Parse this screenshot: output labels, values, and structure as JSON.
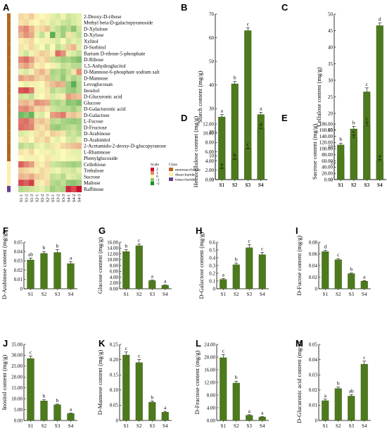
{
  "colors": {
    "bar": "#4d7a1c",
    "bar_edge": "#2f4f0e",
    "heat_low": "#1a8c2e",
    "heat_mid": "#fbfbb8",
    "heat_high": "#c8102e",
    "class_mono": "#b5651d",
    "class_di": "#ffeeaa",
    "class_tri": "#6a3d9a"
  },
  "heatmap": {
    "panel": "A",
    "columns": [
      "S1-1",
      "S1-2",
      "S1-3",
      "S2-1",
      "S2-2",
      "S2-3",
      "S3-1",
      "S3-2",
      "S3-3",
      "S4-1",
      "S4-2",
      "S4-3"
    ],
    "rows": [
      "2-Deoxy-D-ribose",
      "Methyl beta-D-galactopyranoside",
      "D-Xylulose",
      "D-Xylose",
      "Xylitol",
      "D-Sorbitol",
      "Barium D-ribose-5-phosphate",
      "D-Ribose",
      "1,5-Anhydroglucitol",
      "D-Mannose-6-phosphate sodium salt",
      "D-Mannose",
      "Levoglucosan",
      "Inositol",
      "D-Glucuronic acid",
      "Glucose",
      "D-Galacturonic acid",
      "D-Galactose",
      "L-Fucose",
      "D-Fructose",
      "D-Arabinose",
      "D-Arabinitol",
      "2-Acetamido-2-deoxy-D-glucopyranose",
      "L-Rhamnose",
      "Phenylglucoside",
      "Cellobiose",
      "Trehalose",
      "Sucrose",
      "Maltose",
      "Raffinose"
    ],
    "row_class": [
      "mono",
      "mono",
      "mono",
      "mono",
      "mono",
      "mono",
      "mono",
      "mono",
      "mono",
      "mono",
      "mono",
      "mono",
      "mono",
      "mono",
      "mono",
      "mono",
      "mono",
      "mono",
      "mono",
      "mono",
      "mono",
      "mono",
      "mono",
      "mono",
      "di",
      "di",
      "di",
      "di",
      "tri"
    ],
    "values": [
      [
        0.3,
        0.2,
        0.4,
        0.1,
        0.0,
        0.1,
        -0.2,
        -0.3,
        -0.1,
        -0.4,
        -0.3,
        -0.2
      ],
      [
        0.2,
        0.3,
        0.1,
        0.0,
        0.2,
        -0.1,
        -0.3,
        -0.2,
        -0.4,
        -0.5,
        -0.3,
        -0.2
      ],
      [
        0.8,
        1.0,
        0.6,
        0.2,
        0.3,
        0.5,
        -0.3,
        -0.5,
        -0.8,
        -0.6,
        -1.0,
        -0.4
      ],
      [
        0.6,
        0.9,
        0.7,
        -0.2,
        -0.5,
        -0.1,
        -1.4,
        -0.4,
        -0.8,
        0.2,
        -0.3,
        -0.5
      ],
      [
        0.1,
        0.2,
        0.3,
        0.0,
        -0.1,
        0.1,
        -0.2,
        -0.3,
        0.0,
        -0.4,
        -0.2,
        -0.3
      ],
      [
        0.2,
        0.1,
        0.3,
        -0.2,
        0.0,
        -0.4,
        0.0,
        -0.5,
        -0.3,
        0.4,
        0.6,
        -0.2
      ],
      [
        -0.2,
        -0.4,
        -0.1,
        0.2,
        0.4,
        0.3,
        0.1,
        1.2,
        0.9,
        -0.2,
        -0.3,
        -0.5
      ],
      [
        1.0,
        1.2,
        0.8,
        0.3,
        0.2,
        0.4,
        -0.5,
        -0.6,
        -0.8,
        -0.7,
        -0.9,
        -1.1
      ],
      [
        0.6,
        0.8,
        0.5,
        0.1,
        0.2,
        0.0,
        0.1,
        -0.2,
        -0.5,
        -0.4,
        -0.6,
        -0.6
      ],
      [
        -0.2,
        -0.3,
        -0.1,
        0.4,
        0.6,
        0.3,
        -0.7,
        -0.6,
        -0.8,
        -0.5,
        0.2,
        0.9
      ],
      [
        0.8,
        0.6,
        0.7,
        0.4,
        0.3,
        0.5,
        -0.6,
        -0.5,
        -0.9,
        -0.4,
        -0.7,
        -0.5
      ],
      [
        0.0,
        -0.2,
        0.1,
        -0.1,
        0.0,
        0.3,
        0.5,
        0.7,
        0.6,
        -0.8,
        -1.4,
        -0.6
      ],
      [
        1.4,
        1.5,
        1.1,
        0.1,
        -0.1,
        0.2,
        -0.6,
        -0.4,
        -0.5,
        -0.8,
        -0.9,
        -0.6
      ],
      [
        -0.4,
        -0.3,
        -0.5,
        -0.1,
        0.0,
        0.2,
        -0.3,
        -0.2,
        0.1,
        0.8,
        0.6,
        0.5
      ],
      [
        0.5,
        0.6,
        0.4,
        0.9,
        0.8,
        0.7,
        -0.6,
        -0.7,
        -0.5,
        -1.0,
        -0.9,
        -1.1
      ],
      [
        0.9,
        1.0,
        0.7,
        0.3,
        0.4,
        0.2,
        -0.4,
        -0.5,
        -0.6,
        -0.6,
        -0.8,
        -0.5
      ],
      [
        -1.2,
        -1.0,
        -1.3,
        -0.2,
        -0.3,
        0.0,
        0.8,
        0.9,
        1.1,
        0.4,
        0.5,
        0.3
      ],
      [
        1.1,
        1.2,
        0.9,
        0.4,
        0.5,
        0.3,
        -0.6,
        -0.5,
        -0.7,
        -0.8,
        -0.9,
        -0.8
      ],
      [
        1.2,
        1.1,
        1.0,
        0.3,
        0.2,
        0.4,
        -0.8,
        -0.9,
        -0.7,
        -0.6,
        -0.5,
        -0.7
      ],
      [
        -0.3,
        -0.2,
        -0.1,
        0.2,
        0.3,
        0.1,
        0.4,
        0.3,
        0.2,
        -0.5,
        -0.4,
        -0.6
      ],
      [
        0.1,
        0.2,
        0.0,
        0.3,
        0.2,
        0.4,
        -0.1,
        -0.2,
        0.0,
        -0.3,
        -0.4,
        -0.2
      ],
      [
        -0.6,
        -0.4,
        -0.5,
        -0.2,
        -0.1,
        -0.3,
        0.2,
        0.1,
        0.3,
        0.4,
        0.5,
        0.6
      ],
      [
        0.2,
        0.1,
        0.3,
        0.0,
        -0.1,
        0.1,
        -0.2,
        -0.1,
        0.0,
        0.1,
        -0.2,
        -0.2
      ],
      [
        0.0,
        0.1,
        -0.1,
        0.1,
        0.0,
        0.2,
        0.1,
        -0.1,
        0.0,
        -0.1,
        -0.1,
        -0.2
      ],
      [
        1.3,
        1.0,
        0.8,
        0.2,
        0.1,
        0.3,
        -0.4,
        -0.5,
        -0.6,
        -0.7,
        -0.8,
        -0.7
      ],
      [
        0.4,
        0.3,
        0.2,
        0.1,
        0.3,
        0.2,
        -0.2,
        -0.1,
        -0.3,
        -0.3,
        -0.4,
        -0.2
      ],
      [
        0.6,
        0.5,
        0.7,
        0.4,
        0.3,
        0.2,
        -0.5,
        -0.4,
        -0.6,
        -0.2,
        -0.3,
        -0.4
      ],
      [
        1.5,
        1.3,
        1.6,
        0.2,
        0.1,
        0.3,
        -0.6,
        -0.7,
        -0.5,
        -0.9,
        -1.0,
        -0.8
      ],
      [
        -0.6,
        -0.5,
        -0.4,
        -0.3,
        -0.2,
        -0.4,
        -0.8,
        -0.6,
        -0.7,
        1.8,
        1.5,
        2.0
      ]
    ],
    "legend_scale_title": "Scale",
    "legend_scale_ticks": [
      "2",
      "1",
      "0",
      "-1",
      "-2"
    ],
    "legend_class_title": "Class",
    "legend_class_items": [
      "monosaccharide",
      "disaccharide",
      "trisaccharide"
    ]
  },
  "chart_data": [
    {
      "panel": "B",
      "type": "bar",
      "categories": [
        "S1",
        "S2",
        "S3",
        "S4"
      ],
      "values": [
        26.5,
        40.5,
        63,
        27.5
      ],
      "errors": [
        1.0,
        1.0,
        1.2,
        1.0
      ],
      "letters": [
        "a",
        "b",
        "c",
        "a"
      ],
      "ylabel": "Starch content (mg/g)",
      "ylim": [
        0,
        70
      ],
      "ticks": [
        "0",
        "10",
        "20",
        "30",
        "40",
        "50",
        "60",
        "70"
      ]
    },
    {
      "panel": "C",
      "type": "bar",
      "categories": [
        "S1",
        "S2",
        "S3",
        "S4"
      ],
      "values": [
        6.8,
        15.3,
        26.5,
        46.5
      ],
      "errors": [
        0.5,
        0.8,
        1.2,
        0.8
      ],
      "letters": [
        "a",
        "b",
        "c",
        "d"
      ],
      "ylabel": "Cellulose content (mg/g)",
      "ylim": [
        0,
        50
      ],
      "ticks": [
        "0",
        "5",
        "10",
        "15",
        "20",
        "25",
        "30",
        "35",
        "40",
        "45",
        "50"
      ]
    },
    {
      "panel": "D",
      "type": "bar",
      "categories": [
        "S1",
        "S2",
        "S3",
        "S4"
      ],
      "values": [
        2.3,
        4.3,
        6.6,
        10.9
      ],
      "errors": [
        0.2,
        0.2,
        0.2,
        0.2
      ],
      "letters": [
        "a",
        "b",
        "c",
        "d"
      ],
      "ylabel": "Hemicellulose content (mg/g)",
      "ylim": [
        0,
        12
      ],
      "ticks": [
        "0.00",
        "2.00",
        "4.00",
        "6.00",
        "8.00",
        "10.00",
        "12.00"
      ]
    },
    {
      "panel": "E",
      "type": "bar",
      "categories": [
        "S1",
        "S2",
        "S3",
        "S4"
      ],
      "values": [
        112,
        135,
        173,
        60
      ],
      "errors": [
        6,
        9,
        12,
        5
      ],
      "letters": [
        "b",
        "c",
        "c",
        "a"
      ],
      "ylabel": "Sucrose content (mg/g)",
      "ylim": [
        0,
        180
      ],
      "ticks": [
        "0.00",
        "20.00",
        "40.00",
        "60.00",
        "80.00",
        "100.00",
        "120.00",
        "140.00",
        "160.00",
        "180.00"
      ]
    },
    {
      "panel": "F",
      "type": "bar",
      "categories": [
        "S1",
        "S2",
        "S3",
        "S4"
      ],
      "values": [
        0.031,
        0.038,
        0.039,
        0.027
      ],
      "errors": [
        0.002,
        0.002,
        0.003,
        0.002
      ],
      "letters": [
        "ab",
        "b",
        "b",
        "a"
      ],
      "ylabel": "D-Arabinose content (mg/g)",
      "ylim": [
        0,
        0.05
      ],
      "ticks": [
        "0",
        "0.01",
        "0.02",
        "0.03",
        "0.04",
        "0.05"
      ]
    },
    {
      "panel": "G",
      "type": "bar",
      "categories": [
        "S1",
        "S2",
        "S3",
        "S4"
      ],
      "values": [
        12.8,
        14.8,
        2.8,
        1.2
      ],
      "errors": [
        0.6,
        0.6,
        0.2,
        0.1
      ],
      "letters": [
        "b",
        "c",
        "a",
        "a"
      ],
      "ylabel": "Glucose content (mg/g)",
      "ylim": [
        0,
        16
      ],
      "ticks": [
        "0.00",
        "2.00",
        "4.00",
        "6.00",
        "8.00",
        "10.00",
        "12.00",
        "14.00",
        "16.00"
      ]
    },
    {
      "panel": "H",
      "type": "bar",
      "categories": [
        "S1",
        "S2",
        "S3",
        "S4"
      ],
      "values": [
        0.12,
        0.31,
        0.53,
        0.44
      ],
      "errors": [
        0.01,
        0.02,
        0.04,
        0.03
      ],
      "letters": [
        "a",
        "b",
        "c",
        "c"
      ],
      "ylabel": "D-Galactose content (mg/g)",
      "ylim": [
        0,
        0.6
      ],
      "ticks": [
        "0",
        "0.1",
        "0.2",
        "0.3",
        "0.4",
        "0.5",
        "0.6"
      ]
    },
    {
      "panel": "I",
      "type": "bar",
      "categories": [
        "S1",
        "S2",
        "S3",
        "S4"
      ],
      "values": [
        0.064,
        0.05,
        0.026,
        0.013
      ],
      "errors": [
        0.002,
        0.002,
        0.001,
        0.001
      ],
      "letters": [
        "d",
        "c",
        "b",
        "a"
      ],
      "ylabel": "D-Fucose content (mg/g)",
      "ylim": [
        0,
        0.08
      ],
      "ticks": [
        "0",
        "0.02",
        "0.04",
        "0.06",
        "0.08"
      ]
    },
    {
      "panel": "J",
      "type": "bar",
      "categories": [
        "S1",
        "S2",
        "S3",
        "S4"
      ],
      "values": [
        28.5,
        9.0,
        7.2,
        3.2
      ],
      "errors": [
        1.2,
        0.5,
        0.3,
        0.2
      ],
      "letters": [
        "c",
        "b",
        "b",
        "a"
      ],
      "ylabel": "Inositol content (mg/g)",
      "ylim": [
        0,
        35
      ],
      "ticks": [
        "0.00",
        "5.00",
        "10.00",
        "15.00",
        "20.00",
        "25.00",
        "30.00",
        "35.00"
      ]
    },
    {
      "panel": "K",
      "type": "bar",
      "categories": [
        "S1",
        "S2",
        "S3",
        "S4"
      ],
      "values": [
        0.215,
        0.19,
        0.06,
        0.027
      ],
      "errors": [
        0.01,
        0.01,
        0.004,
        0.003
      ],
      "letters": [
        "c",
        "c",
        "b",
        "a"
      ],
      "ylabel": "D-Mannose content (mg/g)",
      "ylim": [
        0,
        0.25
      ],
      "ticks": [
        "0",
        "0.05",
        "0.10",
        "0.15",
        "0.20",
        "0.25"
      ]
    },
    {
      "panel": "L",
      "type": "bar",
      "categories": [
        "S1",
        "S2",
        "S3",
        "S4"
      ],
      "values": [
        19.8,
        11.8,
        1.6,
        1.1
      ],
      "errors": [
        1.0,
        0.6,
        0.2,
        0.1
      ],
      "letters": [
        "c",
        "b",
        "a",
        "a"
      ],
      "ylabel": "D-Fructose content (mg/g)",
      "ylim": [
        0,
        24
      ],
      "ticks": [
        "0.00",
        "4.00",
        "8.00",
        "12.00",
        "16.00",
        "20.00",
        "24.00"
      ]
    },
    {
      "panel": "M",
      "type": "bar",
      "categories": [
        "S1",
        "S2",
        "S3",
        "S4"
      ],
      "values": [
        0.013,
        0.021,
        0.016,
        0.037
      ],
      "errors": [
        0.001,
        0.001,
        0.001,
        0.002
      ],
      "letters": [
        "a",
        "b",
        "ab",
        "c"
      ],
      "ylabel": "D-Glucuronic acid content (mg/g)",
      "ylim": [
        0,
        0.05
      ],
      "ticks": [
        "0",
        "0.01",
        "0.02",
        "0.03",
        "0.04",
        "0.05"
      ]
    }
  ]
}
